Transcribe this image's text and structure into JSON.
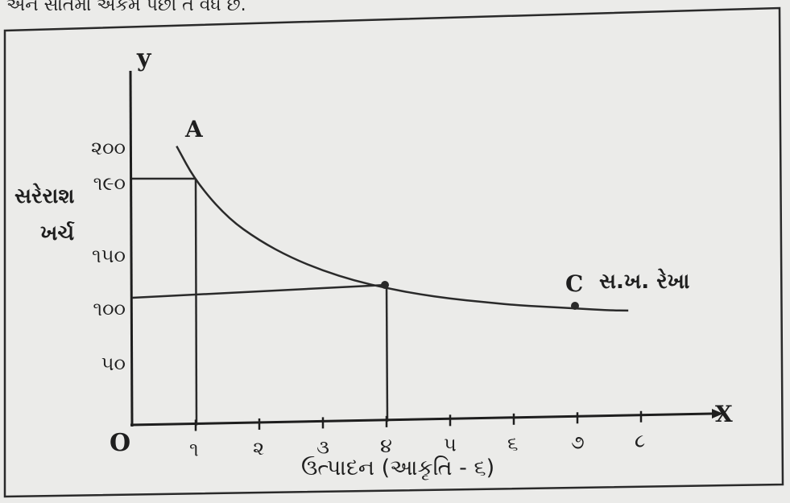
{
  "caption": "અને સાતમા એકમ પછી તે વધે છે.",
  "chart_data": {
    "type": "line",
    "title": "",
    "xlabel": "ઉત્પાદન (આકૃતિ - ૬)",
    "ylabel_line1": "સરેરાશ",
    "ylabel_line2": "ખર્ચ",
    "x_axis_letter": "X",
    "y_axis_letter": "y",
    "origin_label": "O",
    "xlim": [
      0,
      8.6
    ],
    "ylim": [
      0,
      240
    ],
    "x_ticks": [
      {
        "value": 1,
        "label": "૧"
      },
      {
        "value": 2,
        "label": "૨"
      },
      {
        "value": 3,
        "label": "૩"
      },
      {
        "value": 4,
        "label": "૪"
      },
      {
        "value": 5,
        "label": "૫"
      },
      {
        "value": 6,
        "label": "૬"
      },
      {
        "value": 7,
        "label": "૭"
      },
      {
        "value": 8,
        "label": "૮"
      }
    ],
    "y_ticks": [
      {
        "value": 50,
        "label": "૫૦"
      },
      {
        "value": 100,
        "label": "૧૦૦"
      },
      {
        "value": 150,
        "label": "૧૫૦"
      },
      {
        "value": 190,
        "label": "૧૯૦"
      },
      {
        "value": 200,
        "label": "૨૦૦"
      }
    ],
    "series": [
      {
        "name": "સ.ખ. રેખા",
        "x": [
          0.7,
          1.0,
          1.5,
          2.0,
          2.5,
          3.0,
          3.5,
          4.0,
          4.5,
          5.0,
          5.5,
          6.0,
          6.5,
          7.0,
          7.5,
          7.8
        ],
        "y": [
          215,
          190,
          164,
          148,
          136,
          127,
          120,
          115,
          111,
          108,
          106,
          104,
          103,
          102,
          101,
          101
        ]
      }
    ],
    "points": [
      {
        "label": "A",
        "x": 1,
        "y": 190
      },
      {
        "label": "",
        "x": 4,
        "y": 115
      },
      {
        "label": "C",
        "x": 7,
        "y": 102
      }
    ],
    "reference_lines": [
      {
        "type": "vertical",
        "x": 1,
        "y": 190
      },
      {
        "type": "horizontal",
        "x": 1,
        "y": 190
      },
      {
        "type": "vertical",
        "x": 4,
        "y": 115
      },
      {
        "type": "horizontal",
        "x": 4,
        "y": 115
      }
    ]
  }
}
